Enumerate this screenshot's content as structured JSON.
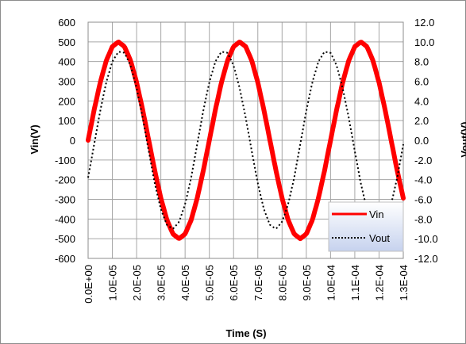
{
  "chart_data": {
    "type": "line",
    "xlabel": "Time (S)",
    "ylabel_left": "Vin(V)",
    "ylabel_right": "Vout(V)",
    "x_tick_labels": [
      "0.0E+00",
      "1.0E-05",
      "2.0E-05",
      "3.0E-05",
      "4.0E-05",
      "5.0E-05",
      "6.0E-05",
      "7.0E-05",
      "8.0E-05",
      "9.0E-05",
      "1.0E-04",
      "1.1E-04",
      "1.2E-04",
      "1.3E-04"
    ],
    "x_ticks": [
      0,
      1e-05,
      2e-05,
      3e-05,
      4e-05,
      5e-05,
      6e-05,
      7e-05,
      8e-05,
      9e-05,
      0.0001,
      0.00011,
      0.00012,
      0.00013
    ],
    "xlim": [
      0,
      0.00013
    ],
    "y_left_tick_labels": [
      "600",
      "500",
      "400",
      "300",
      "200",
      "100",
      "0",
      "-100",
      "-200",
      "-300",
      "-400",
      "-500",
      "-600"
    ],
    "y_left_ticks": [
      600,
      500,
      400,
      300,
      200,
      100,
      0,
      -100,
      -200,
      -300,
      -400,
      -500,
      -600
    ],
    "ylim_left": [
      -600,
      600
    ],
    "y_right_tick_labels": [
      "12.0",
      "10.0",
      "8.0",
      "6.0",
      "4.0",
      "2.0",
      "0.0",
      "-2.0",
      "-4.0",
      "-6.0",
      "-8.0",
      "-10.0",
      "-12.0"
    ],
    "y_right_ticks": [
      12,
      10,
      8,
      6,
      4,
      2,
      0,
      -2,
      -4,
      -6,
      -8,
      -10,
      -12
    ],
    "ylim_right": [
      -12,
      12
    ],
    "grid": true,
    "legend_position": "bottom-right",
    "series": [
      {
        "name": "Vin",
        "axis": "left",
        "style": "solid",
        "color": "#ff0000",
        "x": [
          0,
          2.5e-06,
          5e-06,
          7.5e-06,
          1e-05,
          1.25e-05,
          1.5e-05,
          1.75e-05,
          2e-05,
          2.25e-05,
          2.5e-05,
          2.75e-05,
          3e-05,
          3.25e-05,
          3.5e-05,
          3.75e-05,
          4e-05,
          4.25e-05,
          4.5e-05,
          4.75e-05,
          5e-05,
          5.25e-05,
          5.5e-05,
          5.75e-05,
          6e-05,
          6.25e-05,
          6.5e-05,
          6.75e-05,
          7e-05,
          7.25e-05,
          7.5e-05,
          7.75e-05,
          8e-05,
          8.25e-05,
          8.5e-05,
          8.75e-05,
          9e-05,
          9.25e-05,
          9.5e-05,
          9.75e-05,
          0.0001,
          0.0001025,
          0.000105,
          0.0001075,
          0.00011,
          0.0001125,
          0.000115,
          0.0001175,
          0.00012,
          0.0001225,
          0.000125,
          0.0001275,
          0.00013
        ],
        "y": [
          0,
          155,
          294,
          405,
          476,
          500,
          476,
          405,
          294,
          155,
          0,
          -155,
          -294,
          -405,
          -476,
          -500,
          -476,
          -405,
          -294,
          -155,
          0,
          155,
          294,
          405,
          476,
          500,
          476,
          405,
          294,
          155,
          0,
          -155,
          -294,
          -405,
          -476,
          -500,
          -476,
          -405,
          -294,
          -155,
          0,
          155,
          294,
          405,
          476,
          500,
          476,
          405,
          294,
          155,
          0,
          -155,
          -294
        ]
      },
      {
        "name": "Vout",
        "axis": "right",
        "style": "dotted",
        "color": "#000000",
        "x": [
          0,
          2.5e-06,
          5e-06,
          7.5e-06,
          1e-05,
          1.25e-05,
          1.5e-05,
          1.75e-05,
          2e-05,
          2.25e-05,
          2.5e-05,
          2.75e-05,
          3e-05,
          3.25e-05,
          3.5e-05,
          3.75e-05,
          4e-05,
          4.25e-05,
          4.5e-05,
          4.75e-05,
          5e-05,
          5.25e-05,
          5.5e-05,
          5.75e-05,
          6e-05,
          6.25e-05,
          6.5e-05,
          6.75e-05,
          7e-05,
          7.25e-05,
          7.5e-05,
          7.75e-05,
          8e-05,
          8.25e-05,
          8.5e-05,
          8.75e-05,
          9e-05,
          9.25e-05,
          9.5e-05,
          9.75e-05,
          0.0001,
          0.0001025,
          0.000105,
          0.0001075,
          0.00011,
          0.0001125,
          0.000115,
          0.0001175,
          0.00012,
          0.0001225,
          0.000125,
          0.0001275,
          0.00013
        ],
        "y": [
          -3.8,
          -0.4,
          3.0,
          5.9,
          8.0,
          9.0,
          8.9,
          7.6,
          5.3,
          2.3,
          -1.1,
          -4.4,
          -7.0,
          -8.6,
          -9.0,
          -8.3,
          -6.5,
          -3.8,
          -0.4,
          3.0,
          5.9,
          8.0,
          9.0,
          8.9,
          7.6,
          5.3,
          2.3,
          -1.1,
          -4.4,
          -7.0,
          -8.6,
          -9.0,
          -8.3,
          -6.5,
          -3.8,
          -0.4,
          3.0,
          5.9,
          8.0,
          9.0,
          8.9,
          7.6,
          5.3,
          2.3,
          -1.1,
          -4.4,
          -7.0,
          -8.6,
          -9.0,
          -8.3,
          -6.5,
          -3.8,
          -0.4
        ]
      }
    ]
  }
}
